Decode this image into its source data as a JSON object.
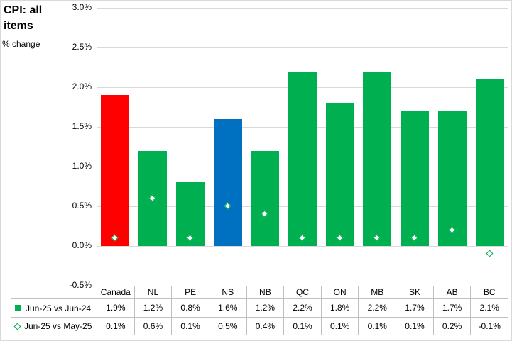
{
  "chart": {
    "title": "CPI: all items",
    "subtitle": "% change"
  },
  "chart_data": {
    "type": "bar",
    "title": "CPI: all items",
    "ylabel": "% change",
    "categories": [
      "Canada",
      "NL",
      "PE",
      "NS",
      "NB",
      "QC",
      "ON",
      "MB",
      "SK",
      "AB",
      "BC"
    ],
    "series": [
      {
        "name": "Jun-25 vs Jun-24",
        "type": "bar",
        "values": [
          1.9,
          1.2,
          0.8,
          1.6,
          1.2,
          2.2,
          1.8,
          2.2,
          1.7,
          1.7,
          2.1
        ],
        "labels": [
          "1.9%",
          "1.2%",
          "0.8%",
          "1.6%",
          "1.2%",
          "2.2%",
          "1.8%",
          "2.2%",
          "1.7%",
          "1.7%",
          "2.1%"
        ]
      },
      {
        "name": "Jun-25 vs May-25",
        "type": "scatter-diamond",
        "values": [
          0.1,
          0.6,
          0.1,
          0.5,
          0.4,
          0.1,
          0.1,
          0.1,
          0.1,
          0.2,
          -0.1
        ],
        "labels": [
          "0.1%",
          "0.6%",
          "0.1%",
          "0.5%",
          "0.4%",
          "0.1%",
          "0.1%",
          "0.1%",
          "0.1%",
          "0.2%",
          "-0.1%"
        ]
      }
    ],
    "bar_colors": [
      "#FF0000",
      "#00B050",
      "#00B050",
      "#0070C0",
      "#00B050",
      "#00B050",
      "#00B050",
      "#00B050",
      "#00B050",
      "#00B050",
      "#00B050"
    ],
    "marker_color": "#00B050",
    "marker_fill": "#FFFFFF",
    "ylim": [
      -0.5,
      3.0
    ],
    "y_ticks": [
      3.0,
      2.5,
      2.0,
      1.5,
      1.0,
      0.5,
      0.0,
      -0.5
    ],
    "y_tick_labels": [
      "3.0%",
      "2.5%",
      "2.0%",
      "1.5%",
      "1.0%",
      "0.5%",
      "0.0%",
      "-0.5%"
    ],
    "grid": true,
    "legend_position": "table-left",
    "data_table": true,
    "gridline_color": "#d9d9d9",
    "table_border_color": "#bfbfbf"
  }
}
